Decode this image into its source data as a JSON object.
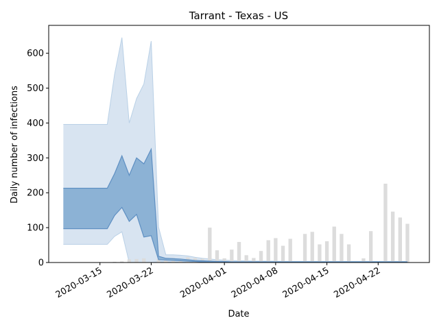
{
  "chart_data": {
    "type": "bar",
    "title": "Tarrant - Texas - US",
    "xlabel": "Date",
    "ylabel": "Daily number of infections",
    "ylim": [
      0,
      680
    ],
    "xlim": [
      "2020-03-08",
      "2020-04-29"
    ],
    "grid": false,
    "x_ticks": [
      "2020-03-15",
      "2020-03-22",
      "2020-04-01",
      "2020-04-08",
      "2020-04-15",
      "2020-04-22"
    ],
    "y_ticks": [
      0,
      100,
      200,
      300,
      400,
      500,
      600
    ],
    "bar_color": "#dcdcdc",
    "outer_band_color": "#d6e3f0",
    "inner_band_color": "#86aed3",
    "line_color": "#5e8fc2",
    "bars": [
      {
        "date": "2020-03-17",
        "value": 2
      },
      {
        "date": "2020-03-18",
        "value": 3
      },
      {
        "date": "2020-03-19",
        "value": 9
      },
      {
        "date": "2020-03-20",
        "value": 10
      },
      {
        "date": "2020-03-21",
        "value": 12
      },
      {
        "date": "2020-03-22",
        "value": 0
      },
      {
        "date": "2020-03-23",
        "value": 10
      },
      {
        "date": "2020-03-24",
        "value": 9
      },
      {
        "date": "2020-03-25",
        "value": 13
      },
      {
        "date": "2020-03-26",
        "value": 11
      },
      {
        "date": "2020-03-27",
        "value": 15
      },
      {
        "date": "2020-03-28",
        "value": 13
      },
      {
        "date": "2020-03-29",
        "value": 11
      },
      {
        "date": "2020-03-30",
        "value": 100
      },
      {
        "date": "2020-03-31",
        "value": 35
      },
      {
        "date": "2020-04-01",
        "value": 12
      },
      {
        "date": "2020-04-02",
        "value": 37
      },
      {
        "date": "2020-04-03",
        "value": 59
      },
      {
        "date": "2020-04-04",
        "value": 21
      },
      {
        "date": "2020-04-05",
        "value": 13
      },
      {
        "date": "2020-04-06",
        "value": 33
      },
      {
        "date": "2020-04-07",
        "value": 64
      },
      {
        "date": "2020-04-08",
        "value": 70
      },
      {
        "date": "2020-04-09",
        "value": 48
      },
      {
        "date": "2020-04-10",
        "value": 68
      },
      {
        "date": "2020-04-12",
        "value": 82
      },
      {
        "date": "2020-04-13",
        "value": 88
      },
      {
        "date": "2020-04-14",
        "value": 52
      },
      {
        "date": "2020-04-15",
        "value": 61
      },
      {
        "date": "2020-04-16",
        "value": 103
      },
      {
        "date": "2020-04-17",
        "value": 82
      },
      {
        "date": "2020-04-18",
        "value": 52
      },
      {
        "date": "2020-04-20",
        "value": 12
      },
      {
        "date": "2020-04-21",
        "value": 90
      },
      {
        "date": "2020-04-23",
        "value": 226
      },
      {
        "date": "2020-04-24",
        "value": 146
      },
      {
        "date": "2020-04-25",
        "value": 129
      },
      {
        "date": "2020-04-26",
        "value": 111
      }
    ],
    "band_dates": [
      "2020-03-10",
      "2020-03-11",
      "2020-03-12",
      "2020-03-13",
      "2020-03-14",
      "2020-03-15",
      "2020-03-16",
      "2020-03-17",
      "2020-03-18",
      "2020-03-19",
      "2020-03-20",
      "2020-03-21",
      "2020-03-22",
      "2020-03-23",
      "2020-03-24",
      "2020-03-25",
      "2020-03-26",
      "2020-03-27",
      "2020-03-28",
      "2020-03-29",
      "2020-03-30",
      "2020-03-31",
      "2020-04-01",
      "2020-04-02",
      "2020-04-03",
      "2020-04-04",
      "2020-04-05",
      "2020-04-06",
      "2020-04-07",
      "2020-04-08",
      "2020-04-09",
      "2020-04-10",
      "2020-04-11",
      "2020-04-12",
      "2020-04-13",
      "2020-04-14",
      "2020-04-15",
      "2020-04-16",
      "2020-04-17",
      "2020-04-18",
      "2020-04-19",
      "2020-04-20",
      "2020-04-21",
      "2020-04-22",
      "2020-04-23",
      "2020-04-24",
      "2020-04-25",
      "2020-04-26"
    ],
    "outer_upper": [
      396,
      396,
      396,
      396,
      396,
      396,
      396,
      540,
      645,
      400,
      470,
      512,
      635,
      102,
      22,
      22,
      21,
      19,
      15,
      12,
      10,
      8,
      7,
      6,
      5,
      5,
      4,
      4,
      4,
      4,
      3,
      3,
      3,
      3,
      3,
      3,
      3,
      3,
      3,
      3,
      3,
      3,
      3,
      3,
      3,
      3,
      3,
      3
    ],
    "inner_upper": [
      213,
      213,
      213,
      213,
      213,
      213,
      213,
      255,
      306,
      250,
      300,
      283,
      325,
      18,
      12,
      11,
      10,
      8,
      6,
      5,
      4,
      3,
      3,
      2,
      2,
      2,
      2,
      2,
      2,
      2,
      2,
      2,
      2,
      2,
      2,
      2,
      2,
      2,
      2,
      2,
      2,
      2,
      2,
      2,
      2,
      2,
      2,
      2
    ],
    "inner_lower": [
      97,
      97,
      97,
      97,
      97,
      97,
      97,
      135,
      158,
      118,
      138,
      73,
      77,
      8,
      7,
      6,
      5,
      4,
      3,
      2,
      1,
      1,
      1,
      1,
      1,
      1,
      1,
      1,
      1,
      1,
      1,
      1,
      1,
      1,
      1,
      1,
      1,
      1,
      1,
      1,
      1,
      1,
      1,
      1,
      1,
      1,
      1,
      1
    ],
    "outer_lower": [
      52,
      52,
      52,
      52,
      52,
      52,
      52,
      75,
      88,
      0,
      0,
      0,
      0,
      2,
      2,
      1,
      1,
      1,
      1,
      0,
      0,
      0,
      0,
      0,
      0,
      0,
      0,
      0,
      0,
      0,
      0,
      0,
      0,
      0,
      0,
      0,
      0,
      0,
      0,
      0,
      0,
      0,
      0,
      0,
      0,
      0,
      0,
      0
    ]
  }
}
